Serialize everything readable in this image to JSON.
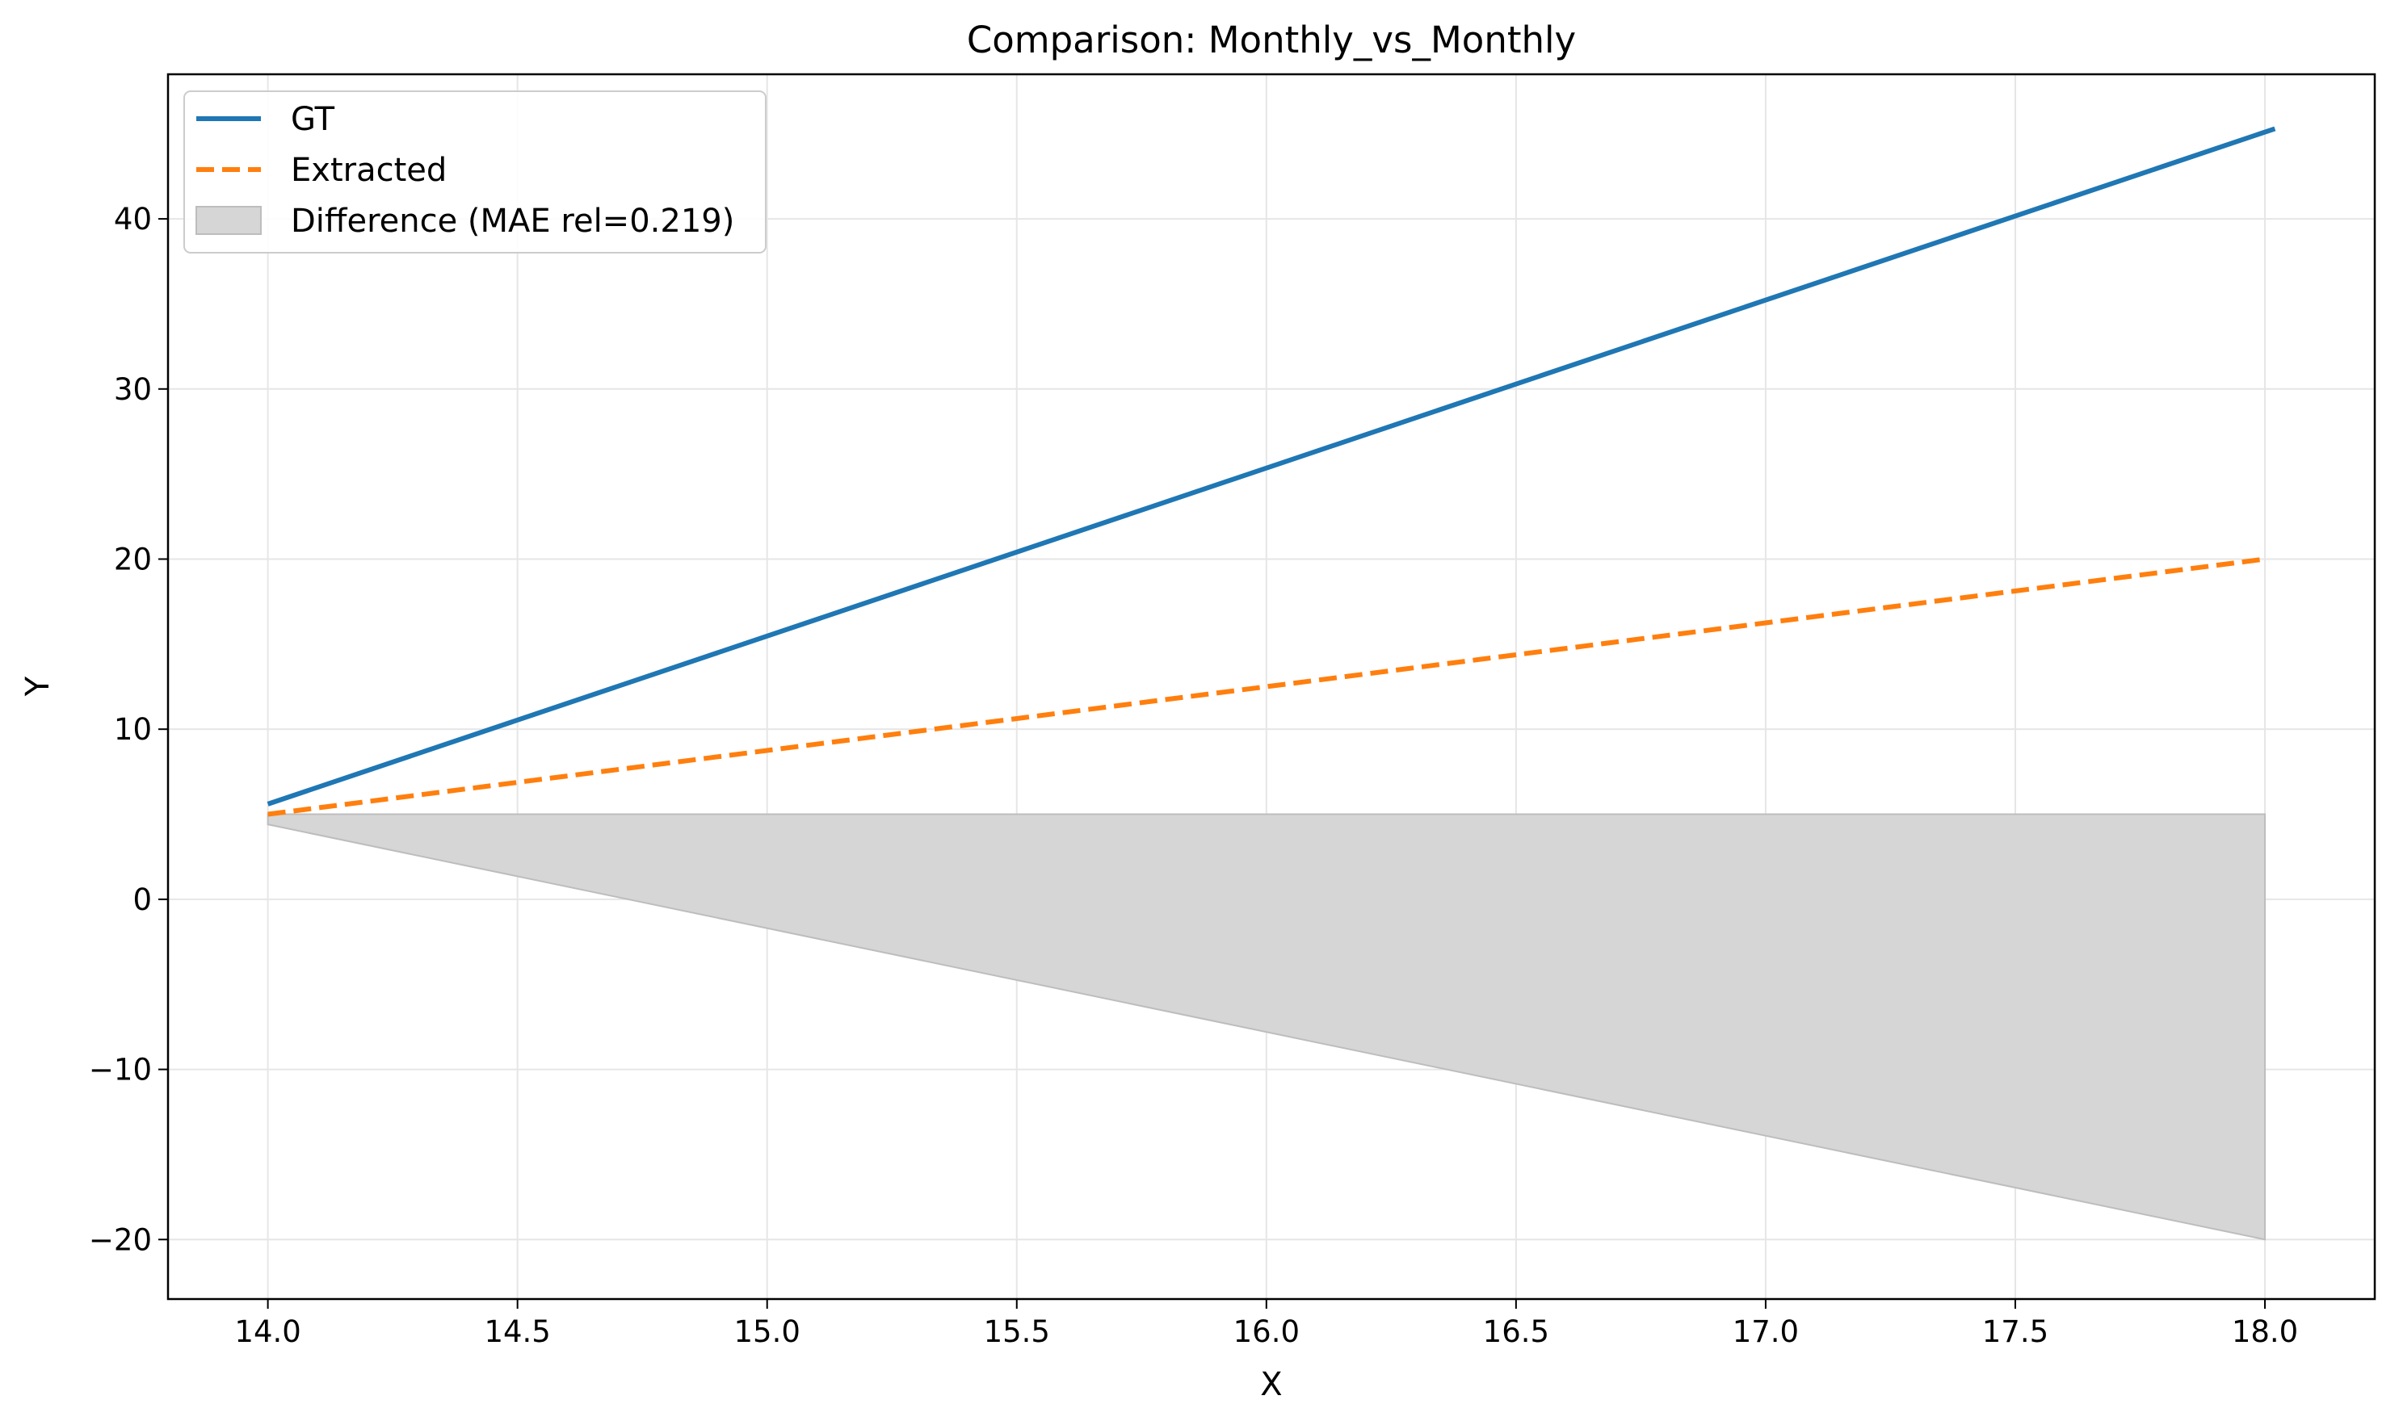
{
  "chart_data": {
    "type": "line",
    "title": "Comparison: Monthly_vs_Monthly",
    "xlabel": "X",
    "ylabel": "Y",
    "xlim": [
      13.8,
      18.22
    ],
    "ylim": [
      -23.5,
      48.5
    ],
    "x_ticks": [
      14.0,
      14.5,
      15.0,
      15.5,
      16.0,
      16.5,
      17.0,
      17.5,
      18.0
    ],
    "x_tick_labels": [
      "14.0",
      "14.5",
      "15.0",
      "15.5",
      "16.0",
      "16.5",
      "17.0",
      "17.5",
      "18.0"
    ],
    "y_ticks": [
      -20,
      -10,
      0,
      10,
      20,
      30,
      40
    ],
    "y_tick_labels": [
      "−20",
      "−10",
      "0",
      "10",
      "20",
      "30",
      "40"
    ],
    "grid": true,
    "legend_position": "top-left",
    "series": [
      {
        "name": "GT",
        "style": "solid",
        "color": "#1f77b4",
        "x": [
          14.0,
          18.02
        ],
        "y": [
          5.6,
          45.3
        ]
      },
      {
        "name": "Extracted",
        "style": "dashed",
        "color": "#ff7f0e",
        "x": [
          14.0,
          18.0
        ],
        "y": [
          5.0,
          20.0
        ]
      }
    ],
    "fill": {
      "name": "Difference (MAE rel=0.219)",
      "color": "#d6d6d6",
      "edge_color": "#bdbdbd",
      "x": [
        14.0,
        18.0
      ],
      "upper": [
        5.0,
        5.0
      ],
      "lower": [
        4.4,
        -20.0
      ]
    }
  }
}
